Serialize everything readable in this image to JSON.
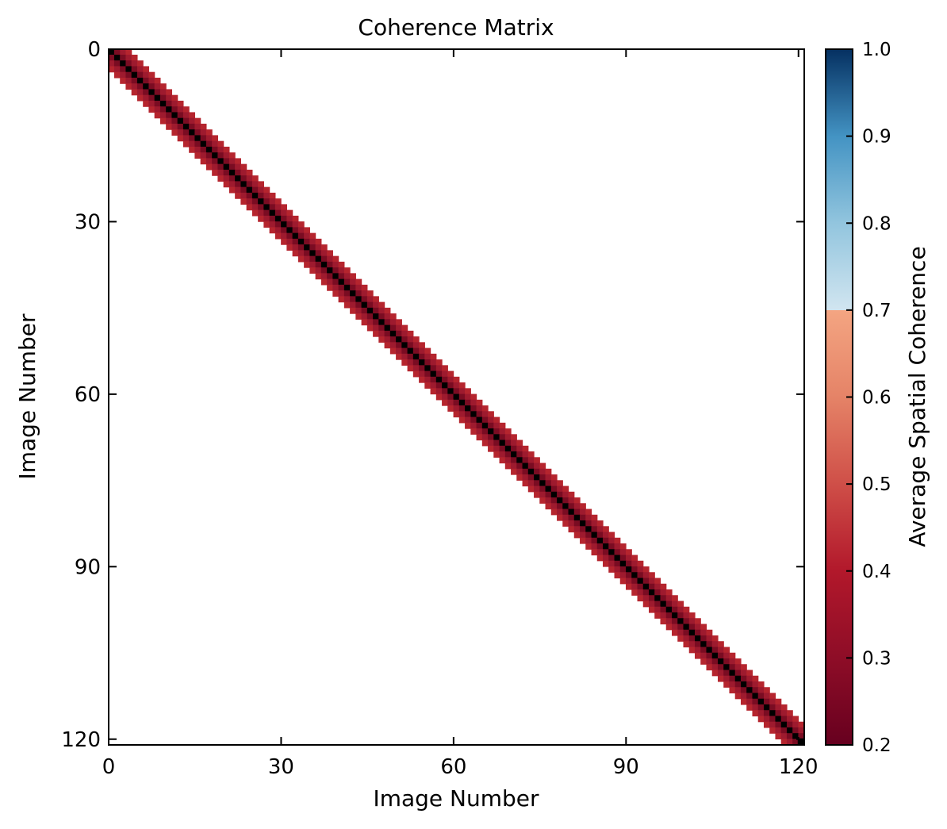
{
  "chart_data": {
    "type": "heatmap",
    "title": "Coherence Matrix",
    "xlabel": "Image Number",
    "ylabel": "Image Number",
    "colorbar_label": "Average Spatial Coherence",
    "n_images": 121,
    "xlim": [
      0,
      121
    ],
    "ylim": [
      121,
      0
    ],
    "x_ticks": [
      0,
      30,
      60,
      90,
      120
    ],
    "y_ticks": [
      0,
      30,
      60,
      90,
      120
    ],
    "x_tick_labels": [
      "0",
      "30",
      "60",
      "90",
      "120"
    ],
    "y_tick_labels": [
      "0",
      "30",
      "60",
      "90",
      "120"
    ],
    "band": [
      {
        "offset": 0,
        "value": 0.2,
        "color": "#000000"
      },
      {
        "offset": 1,
        "value": 0.25,
        "color": "#7a0c22"
      },
      {
        "offset": 2,
        "value": 0.33,
        "color": "#9e1a2e"
      },
      {
        "offset": 3,
        "value": 0.38,
        "color": "#b5252e"
      }
    ],
    "colorbar": {
      "range": [
        0.2,
        1.0
      ],
      "ticks": [
        0.2,
        0.3,
        0.4,
        0.5,
        0.6,
        0.7,
        0.8,
        0.9,
        1.0
      ],
      "tick_labels": [
        "0.2",
        "0.3",
        "0.4",
        "0.5",
        "0.6",
        "0.7",
        "0.8",
        "0.9",
        "1.0"
      ],
      "colormap": "RdBu",
      "stops": [
        {
          "value": 0.2,
          "color": "#67001f"
        },
        {
          "value": 0.3,
          "color": "#8e0d27"
        },
        {
          "value": 0.4,
          "color": "#b2182b"
        },
        {
          "value": 0.5,
          "color": "#cf4f48"
        },
        {
          "value": 0.6,
          "color": "#e58367"
        },
        {
          "value": 0.7,
          "color": "#f4a582"
        },
        {
          "value": 0.7001,
          "color": "#d1e5f0"
        },
        {
          "value": 0.8,
          "color": "#92c5de"
        },
        {
          "value": 0.9,
          "color": "#4393c3"
        },
        {
          "value": 1.0,
          "color": "#053061"
        }
      ]
    }
  }
}
